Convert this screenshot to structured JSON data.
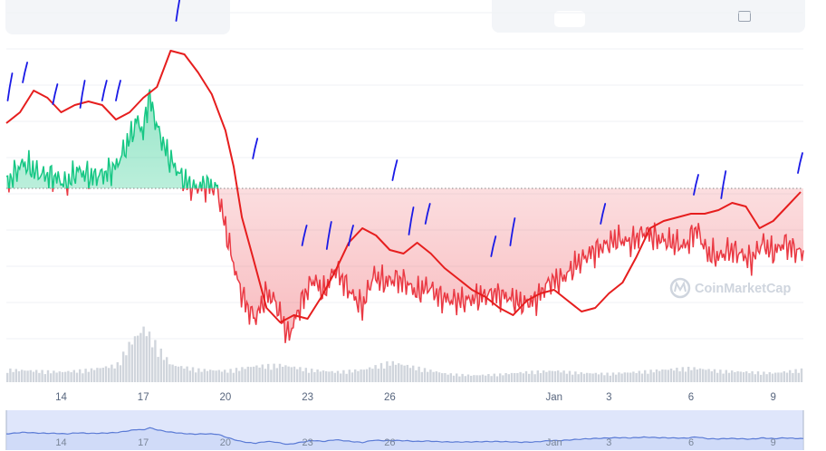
{
  "watermark": {
    "text": "CoinMarketCap"
  },
  "colors": {
    "up_line": "#16c784",
    "down_line": "#ea3943",
    "up_fill": "#16c784",
    "down_fill": "#ea3943",
    "overlay_curve": "#e61e1e",
    "annotation_ink": "#1a1ae6",
    "volume": "#d0d5dc",
    "navigator_line": "#5b7bd5",
    "navigator_fill": "#dfe6fb"
  },
  "chart_data": {
    "type": "area",
    "title": "",
    "xlabel": "",
    "ylabel": "",
    "x_ticks": [
      "14",
      "17",
      "20",
      "23",
      "26",
      "Jan",
      "3",
      "6",
      "9"
    ],
    "x_tick_day_offsets": [
      2,
      5,
      8,
      11,
      14,
      20,
      22,
      25,
      28
    ],
    "x_range_day_offsets": [
      0,
      29.1
    ],
    "y_axis_labels_visible": false,
    "ylim": [
      0,
      100
    ],
    "baseline_value": 53,
    "legend": "none",
    "grid": "horizontal",
    "price_anchors": {
      "x": [
        0,
        0.6,
        1.2,
        1.8,
        2.2,
        2.6,
        3.1,
        3.6,
        4.0,
        4.4,
        4.8,
        5.0,
        5.2,
        5.5,
        5.9,
        6.4,
        6.8,
        7.3,
        7.7,
        8.0,
        8.2,
        8.5,
        8.8,
        9.1,
        9.5,
        9.8,
        10.3,
        10.8,
        11.2,
        11.6,
        12.0,
        12.5,
        13.0,
        13.4,
        13.8,
        14.2,
        14.6,
        15.0,
        15.4,
        15.8,
        16.3,
        16.8,
        17.3,
        17.8,
        18.3,
        18.8,
        19.3,
        19.8,
        20.3,
        20.8,
        21.3,
        21.8,
        22.3,
        22.8,
        23.3,
        23.8,
        24.3,
        24.8,
        25.2,
        25.6,
        26.0,
        26.4,
        26.8,
        27.2,
        27.6,
        28.0,
        28.4,
        28.8,
        29.1
      ],
      "y": [
        54,
        60,
        57,
        56,
        54,
        58,
        56,
        57,
        59,
        65,
        72,
        68,
        79,
        70,
        62,
        56,
        53,
        54,
        53,
        42,
        35,
        26,
        20,
        17,
        24,
        22,
        12,
        22,
        28,
        24,
        31,
        25,
        20,
        29,
        27,
        28,
        27,
        24,
        26,
        23,
        22,
        22,
        23,
        24,
        23,
        21,
        22,
        27,
        28,
        32,
        35,
        37,
        39,
        38,
        41,
        39,
        38,
        37,
        42,
        35,
        34,
        36,
        35,
        33,
        38,
        35,
        38,
        36,
        35
      ]
    },
    "overlay_anchors": {
      "x": [
        0,
        0.5,
        1.0,
        1.5,
        2.0,
        2.5,
        3.0,
        3.5,
        4.0,
        4.5,
        5.0,
        5.5,
        6.0,
        6.5,
        7.0,
        7.5,
        8.0,
        8.3,
        8.6,
        9.0,
        9.5,
        10.0,
        10.5,
        11.0,
        11.5,
        12.0,
        12.5,
        13.0,
        13.5,
        14.0,
        14.5,
        15.0,
        15.5,
        16.0,
        16.5,
        17.0,
        17.5,
        18.0,
        18.5,
        19.0,
        19.5,
        20.0,
        20.5,
        21.0,
        21.5,
        22.0,
        22.5,
        23.0,
        23.5,
        24.0,
        24.5,
        25.0,
        25.5,
        26.0,
        26.5,
        27.0,
        27.5,
        28.0,
        28.5,
        29.0
      ],
      "y": [
        71,
        74,
        80,
        78,
        74,
        76,
        77,
        76,
        72,
        74,
        78,
        81,
        91,
        90,
        85,
        79,
        69,
        59,
        45,
        34,
        20,
        16,
        18,
        17,
        23,
        30,
        38,
        42,
        40,
        36,
        35,
        38,
        35,
        31,
        28,
        25,
        23,
        20,
        18,
        22,
        24,
        25,
        22,
        19,
        20,
        24,
        27,
        34,
        42,
        44,
        45,
        46,
        46,
        47,
        49,
        48,
        42,
        44,
        48,
        52
      ]
    },
    "annotation_marks": {
      "x": [
        0.05,
        0.6,
        1.7,
        2.7,
        3.5,
        4.0,
        6.2,
        9.0,
        10.8,
        11.7,
        12.5,
        14.1,
        14.7,
        15.3,
        17.7,
        18.4,
        21.7,
        25.1,
        26.1,
        28.9
      ],
      "y": [
        81,
        85,
        79,
        79,
        80,
        80,
        103,
        64,
        40,
        40,
        40,
        58,
        44,
        46,
        37,
        41,
        46,
        54,
        54,
        60
      ]
    },
    "volume": {
      "x": [
        0,
        1,
        2,
        3,
        4,
        4.5,
        5.0,
        5.5,
        6,
        7,
        8,
        9,
        10,
        11,
        12,
        13,
        14,
        15,
        16,
        17,
        18,
        19,
        20,
        21,
        22,
        23,
        24,
        25,
        26,
        27,
        28,
        29
      ],
      "values": [
        22,
        20,
        18,
        22,
        30,
        70,
        95,
        60,
        30,
        22,
        20,
        28,
        30,
        22,
        18,
        22,
        35,
        25,
        15,
        12,
        14,
        18,
        20,
        16,
        15,
        18,
        22,
        25,
        20,
        18,
        16,
        22
      ]
    },
    "navigator": {
      "x_ticks": [
        "14",
        "17",
        "20",
        "23",
        "26",
        "Jan",
        "3",
        "6",
        "9"
      ]
    }
  }
}
